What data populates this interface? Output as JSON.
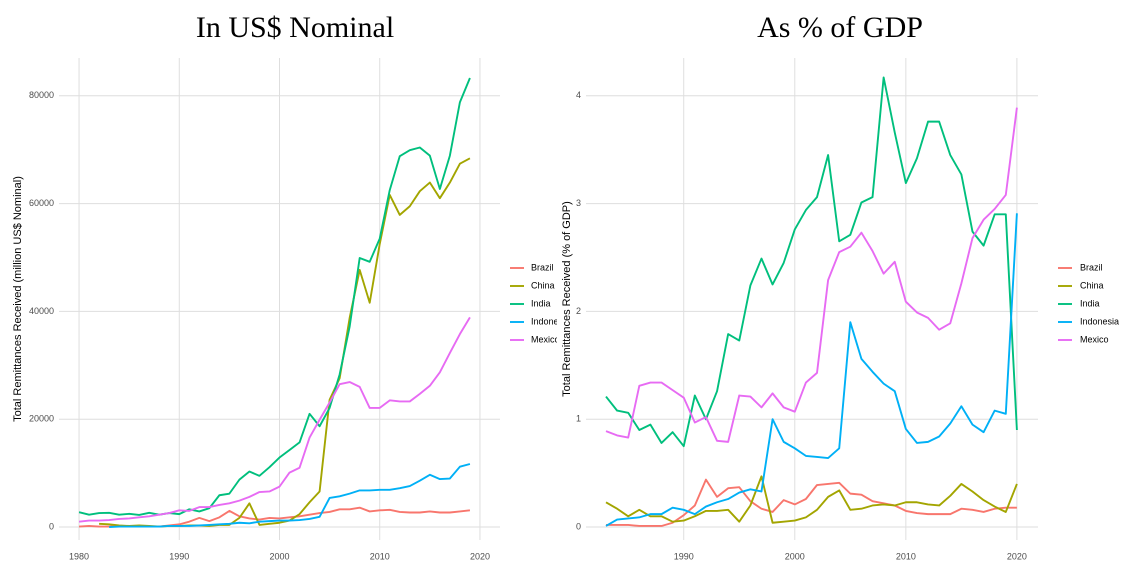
{
  "chart_data": [
    {
      "type": "line",
      "title": "In US$ Nominal",
      "y_label": "Total Remittances Received (million US$ Nominal)",
      "x": [
        1980,
        1981,
        1982,
        1983,
        1984,
        1985,
        1986,
        1987,
        1988,
        1989,
        1990,
        1991,
        1992,
        1993,
        1994,
        1995,
        1996,
        1997,
        1998,
        1999,
        2000,
        2001,
        2002,
        2003,
        2004,
        2005,
        2006,
        2007,
        2008,
        2009,
        2010,
        2011,
        2012,
        2013,
        2014,
        2015,
        2016,
        2017,
        2018,
        2019
      ],
      "series": [
        {
          "name": "Brazil",
          "color": "#F8766D",
          "values": [
            100,
            200,
            100,
            100,
            200,
            200,
            100,
            100,
            100,
            300,
            500,
            1000,
            1700,
            1100,
            1800,
            3000,
            2000,
            1600,
            1400,
            1700,
            1600,
            1800,
            2000,
            2300,
            2600,
            2800,
            3300,
            3300,
            3600,
            2900,
            3100,
            3200,
            2800,
            2700,
            2700,
            2900,
            2700,
            2700,
            2900,
            3100
          ]
        },
        {
          "name": "China",
          "color": "#A3A500",
          "values": [
            null,
            null,
            600,
            500,
            300,
            200,
            300,
            200,
            100,
            200,
            200,
            300,
            300,
            200,
            400,
            400,
            1700,
            4400,
            400,
            600,
            800,
            1200,
            2400,
            4600,
            6600,
            23600,
            27600,
            38800,
            47700,
            41600,
            52500,
            61600,
            57900,
            59500,
            62300,
            63900,
            61000,
            63900,
            67400,
            68400
          ]
        },
        {
          "name": "India",
          "color": "#00BF7D",
          "values": [
            2750,
            2300,
            2600,
            2650,
            2300,
            2450,
            2250,
            2650,
            2300,
            2600,
            2400,
            3300,
            2900,
            3500,
            5900,
            6200,
            8800,
            10300,
            9500,
            11100,
            12900,
            14300,
            15700,
            21000,
            18700,
            22100,
            28300,
            37200,
            49900,
            49200,
            53500,
            62500,
            68800,
            69900,
            70400,
            68900,
            62700,
            68900,
            78800,
            83300
          ]
        },
        {
          "name": "Indonesia",
          "color": "#00B0F6",
          "values": [
            null,
            null,
            null,
            0,
            100,
            100,
            100,
            100,
            100,
            200,
            200,
            200,
            300,
            400,
            500,
            600,
            800,
            700,
            1000,
            1100,
            1200,
            1200,
            1300,
            1500,
            1900,
            5400,
            5700,
            6200,
            6800,
            6800,
            6900,
            6900,
            7200,
            7600,
            8600,
            9700,
            8900,
            9000,
            11200,
            11700
          ]
        },
        {
          "name": "Mexico",
          "color": "#E76BF3",
          "values": [
            1000,
            1200,
            1200,
            1300,
            1500,
            1600,
            1800,
            2000,
            2300,
            2600,
            3100,
            3000,
            3700,
            3700,
            4100,
            4400,
            4900,
            5600,
            6500,
            6600,
            7500,
            10100,
            11000,
            16600,
            19900,
            23100,
            26500,
            26900,
            26000,
            22100,
            22100,
            23500,
            23300,
            23300,
            24700,
            26200,
            28700,
            32300,
            35800,
            38900
          ]
        }
      ],
      "xlim": [
        1978,
        2022
      ],
      "ylim": [
        -2400,
        87000
      ],
      "xticks": [
        1980,
        1990,
        2000,
        2010,
        2020
      ],
      "yticks": [
        0,
        20000,
        40000,
        60000,
        80000
      ],
      "grid": true
    },
    {
      "type": "line",
      "title": "As % of GDP",
      "y_label": "Total Remittances Received (% of GDP)",
      "x": [
        1983,
        1984,
        1985,
        1986,
        1987,
        1988,
        1989,
        1990,
        1991,
        1992,
        1993,
        1994,
        1995,
        1996,
        1997,
        1998,
        1999,
        2000,
        2001,
        2002,
        2003,
        2004,
        2005,
        2006,
        2007,
        2008,
        2009,
        2010,
        2011,
        2012,
        2013,
        2014,
        2015,
        2016,
        2017,
        2018,
        2019,
        2020
      ],
      "series": [
        {
          "name": "Brazil",
          "color": "#F8766D",
          "values": [
            0.02,
            0.02,
            0.02,
            0.01,
            0.01,
            0.01,
            0.04,
            0.11,
            0.2,
            0.44,
            0.28,
            0.36,
            0.37,
            0.24,
            0.17,
            0.14,
            0.25,
            0.21,
            0.26,
            0.39,
            0.4,
            0.41,
            0.31,
            0.3,
            0.24,
            0.22,
            0.2,
            0.15,
            0.13,
            0.12,
            0.12,
            0.12,
            0.17,
            0.16,
            0.14,
            0.17,
            0.18,
            0.18
          ]
        },
        {
          "name": "China",
          "color": "#A3A500",
          "values": [
            0.23,
            0.17,
            0.1,
            0.16,
            0.1,
            0.1,
            0.05,
            0.06,
            0.1,
            0.15,
            0.15,
            0.16,
            0.05,
            0.2,
            0.47,
            0.04,
            0.05,
            0.06,
            0.09,
            0.16,
            0.28,
            0.34,
            0.16,
            0.17,
            0.2,
            0.21,
            0.2,
            0.23,
            0.23,
            0.21,
            0.2,
            0.29,
            0.4,
            0.33,
            0.25,
            0.19,
            0.14,
            0.4
          ]
        },
        {
          "name": "India",
          "color": "#00BF7D",
          "values": [
            1.21,
            1.08,
            1.06,
            0.9,
            0.95,
            0.78,
            0.88,
            0.75,
            1.22,
            1.0,
            1.26,
            1.79,
            1.73,
            2.24,
            2.49,
            2.25,
            2.45,
            2.76,
            2.94,
            3.06,
            3.45,
            2.65,
            2.71,
            3.01,
            3.06,
            4.17,
            3.66,
            3.19,
            3.42,
            3.76,
            3.76,
            3.45,
            3.27,
            2.74,
            2.61,
            2.9,
            2.9,
            0.9
          ]
        },
        {
          "name": "Indonesia",
          "color": "#00B0F6",
          "values": [
            0.01,
            0.07,
            0.08,
            0.09,
            0.12,
            0.12,
            0.18,
            0.16,
            0.12,
            0.19,
            0.23,
            0.26,
            0.32,
            0.35,
            0.33,
            1.0,
            0.79,
            0.73,
            0.66,
            0.65,
            0.64,
            0.73,
            1.9,
            1.56,
            1.44,
            1.33,
            1.26,
            0.91,
            0.78,
            0.79,
            0.84,
            0.96,
            1.12,
            0.95,
            0.88,
            1.08,
            1.05,
            2.91
          ]
        },
        {
          "name": "Mexico",
          "color": "#E76BF3",
          "values": [
            0.89,
            0.85,
            0.83,
            1.31,
            1.34,
            1.34,
            1.27,
            1.2,
            0.97,
            1.02,
            0.8,
            0.79,
            1.22,
            1.21,
            1.11,
            1.24,
            1.11,
            1.07,
            1.34,
            1.43,
            2.29,
            2.55,
            2.6,
            2.73,
            2.56,
            2.35,
            2.46,
            2.09,
            1.99,
            1.94,
            1.83,
            1.89,
            2.26,
            2.68,
            2.85,
            2.95,
            3.08,
            3.89
          ]
        }
      ],
      "xlim": [
        1981.2,
        2021.9
      ],
      "ylim": [
        -0.12,
        4.35
      ],
      "xticks": [
        1990,
        2000,
        2010,
        2020
      ],
      "yticks": [
        0,
        1,
        2,
        3,
        4
      ],
      "grid": true
    }
  ]
}
